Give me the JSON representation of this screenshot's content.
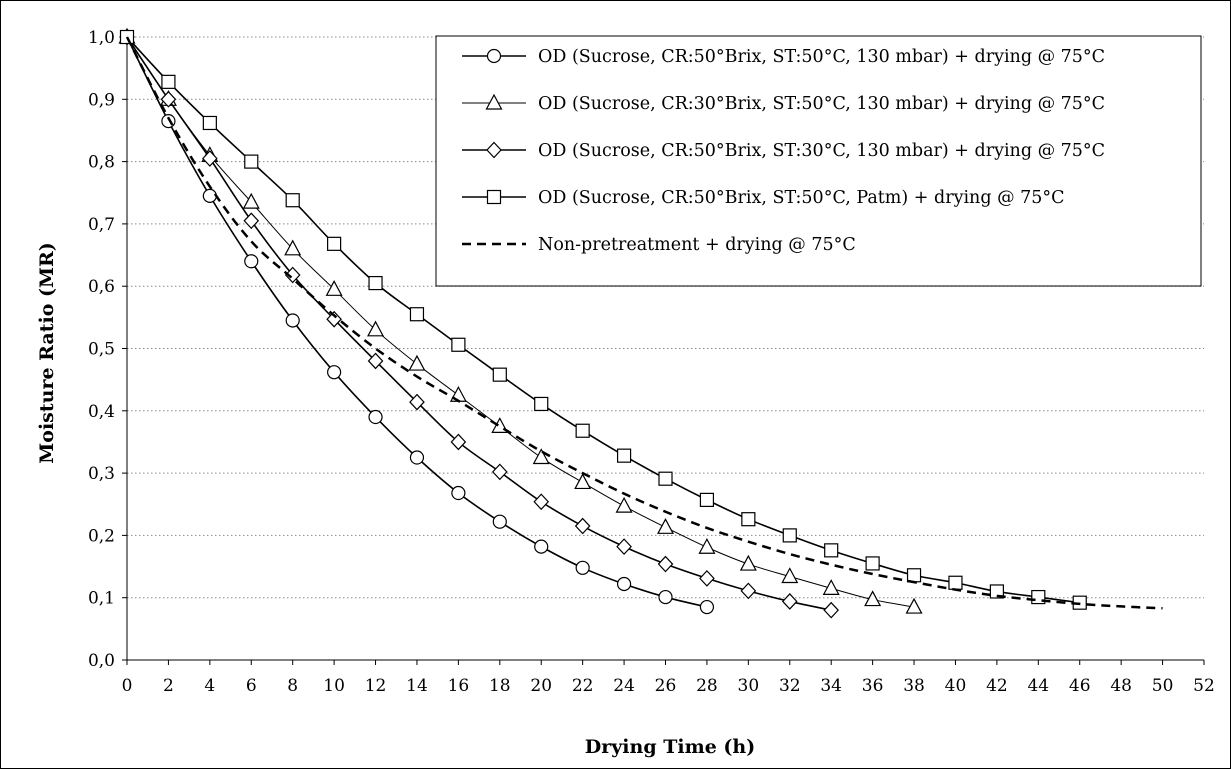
{
  "chart_data": {
    "type": "line",
    "title": "",
    "xlabel": "Drying Time (h)",
    "ylabel": "Moisture Ratio (MR)",
    "xlim": [
      0,
      52
    ],
    "ylim": [
      0,
      1.0
    ],
    "x_ticks": [
      "0",
      "2",
      "4",
      "6",
      "8",
      "10",
      "12",
      "14",
      "16",
      "18",
      "20",
      "22",
      "24",
      "26",
      "28",
      "30",
      "32",
      "34",
      "36",
      "38",
      "40",
      "42",
      "44",
      "46",
      "48",
      "50",
      "52"
    ],
    "y_ticks": [
      "0,0",
      "0,1",
      "0,2",
      "0,3",
      "0,4",
      "0,5",
      "0,6",
      "0,7",
      "0,8",
      "0,9",
      "1,0"
    ],
    "grid": "horizontal dotted",
    "legend_position": "top-right",
    "series": [
      {
        "name": "OD (Sucrose, CR:50°Brix, ST:50°C, 130 mbar) + drying @ 75°C",
        "marker": "circle",
        "line": "solid",
        "x": [
          0,
          2,
          4,
          6,
          8,
          10,
          12,
          14,
          16,
          18,
          20,
          22,
          24,
          26,
          28
        ],
        "y": [
          1.0,
          0.865,
          0.745,
          0.64,
          0.545,
          0.462,
          0.39,
          0.325,
          0.268,
          0.222,
          0.182,
          0.148,
          0.122,
          0.101,
          0.085
        ]
      },
      {
        "name": "OD (Sucrose, CR:30°Brix, ST:50°C, 130 mbar) + drying @ 75°C",
        "marker": "triangle",
        "line": "solid-thin",
        "x": [
          0,
          2,
          4,
          6,
          8,
          10,
          12,
          14,
          16,
          18,
          20,
          22,
          24,
          26,
          28,
          30,
          32,
          34,
          36,
          38
        ],
        "y": [
          1.0,
          0.9,
          0.81,
          0.735,
          0.66,
          0.595,
          0.53,
          0.475,
          0.425,
          0.375,
          0.325,
          0.285,
          0.247,
          0.213,
          0.181,
          0.154,
          0.134,
          0.115,
          0.097,
          0.085
        ]
      },
      {
        "name": "OD (Sucrose, CR:50°Brix, ST:30°C, 130 mbar) + drying @ 75°C",
        "marker": "diamond",
        "line": "solid",
        "x": [
          0,
          2,
          4,
          6,
          8,
          10,
          12,
          14,
          16,
          18,
          20,
          22,
          24,
          26,
          28,
          30,
          32,
          34
        ],
        "y": [
          1.0,
          0.9,
          0.805,
          0.705,
          0.618,
          0.547,
          0.48,
          0.414,
          0.35,
          0.302,
          0.254,
          0.215,
          0.182,
          0.154,
          0.131,
          0.111,
          0.094,
          0.08
        ]
      },
      {
        "name": "OD (Sucrose, CR:50°Brix, ST:50°C, Patm) + drying @ 75°C",
        "marker": "square",
        "line": "solid",
        "x": [
          0,
          2,
          4,
          6,
          8,
          10,
          12,
          14,
          16,
          18,
          20,
          22,
          24,
          26,
          28,
          30,
          32,
          34,
          36,
          38,
          40,
          42,
          44,
          46
        ],
        "y": [
          1.0,
          0.928,
          0.862,
          0.8,
          0.738,
          0.668,
          0.605,
          0.555,
          0.506,
          0.458,
          0.411,
          0.368,
          0.328,
          0.291,
          0.257,
          0.226,
          0.2,
          0.176,
          0.155,
          0.136,
          0.124,
          0.11,
          0.101,
          0.092
        ]
      },
      {
        "name": "Non-pretreatment + drying @ 75°C",
        "marker": "none",
        "line": "dashed",
        "x": [
          0,
          2,
          4,
          6,
          8,
          10,
          12,
          14,
          16,
          18,
          20,
          22,
          24,
          26,
          28,
          30,
          32,
          34,
          36,
          38,
          40,
          42,
          44,
          46,
          48,
          50
        ],
        "y": [
          1.0,
          0.87,
          0.76,
          0.672,
          0.612,
          0.553,
          0.5,
          0.455,
          0.416,
          0.375,
          0.335,
          0.3,
          0.267,
          0.238,
          0.212,
          0.19,
          0.17,
          0.153,
          0.138,
          0.125,
          0.113,
          0.103,
          0.096,
          0.09,
          0.086,
          0.083
        ]
      }
    ]
  }
}
